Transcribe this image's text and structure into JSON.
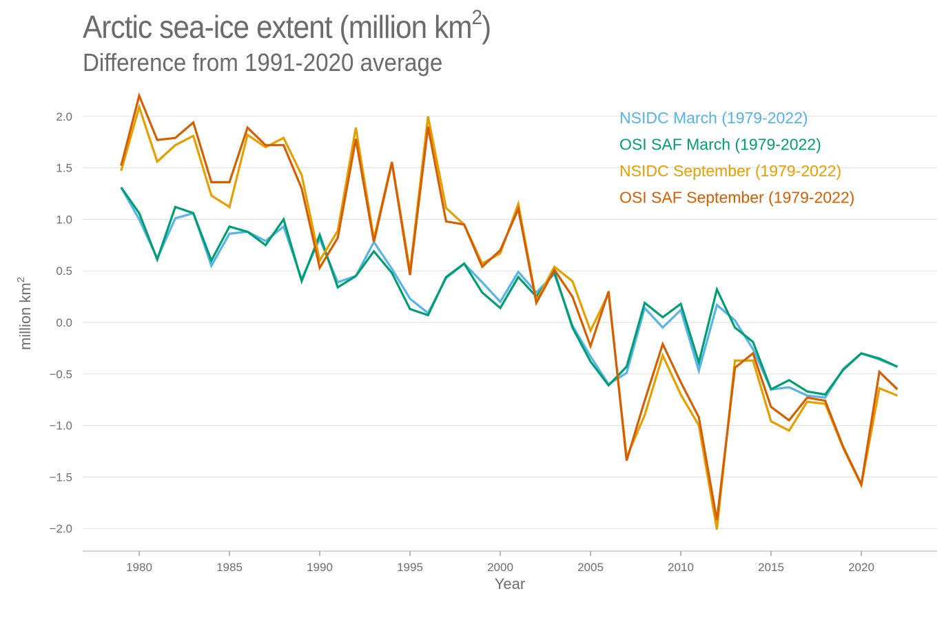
{
  "title": "Arctic sea-ice extent (million km",
  "title_sup": "2",
  "title_close": ")",
  "subtitle": "Difference from 1991-2020 average",
  "chart_data": {
    "type": "line",
    "title": "Arctic sea-ice extent (million km2)",
    "subtitle": "Difference from 1991-2020 average",
    "xlabel": "Year",
    "ylabel": "million km2",
    "xlim": [
      1976.9,
      2024.2
    ],
    "ylim": [
      -2.2,
      2.2
    ],
    "xticks": [
      1980,
      1985,
      1990,
      1995,
      2000,
      2005,
      2010,
      2015,
      2020
    ],
    "yticks": [
      2.0,
      1.5,
      1.0,
      0.5,
      0.0,
      -0.5,
      -1.0,
      -1.5,
      -2.0
    ],
    "ytick_labels": [
      "2.0",
      "1.5",
      "1.0",
      "0.5",
      "0.0",
      "−0.5",
      "−1.0",
      "−1.5",
      "−2.0"
    ],
    "grid": true,
    "legend_position": "top-right",
    "x": [
      1979,
      1980,
      1981,
      1982,
      1983,
      1984,
      1985,
      1986,
      1987,
      1988,
      1989,
      1990,
      1991,
      1992,
      1993,
      1994,
      1995,
      1996,
      1997,
      1998,
      1999,
      2000,
      2001,
      2002,
      2003,
      2004,
      2005,
      2006,
      2007,
      2008,
      2009,
      2010,
      2011,
      2012,
      2013,
      2014,
      2015,
      2016,
      2017,
      2018,
      2019,
      2020,
      2021,
      2022
    ],
    "series": [
      {
        "name": "NSIDC March (1979-2022)",
        "color": "#56b4e9",
        "values": [
          1.31,
          1.0,
          0.62,
          1.01,
          1.06,
          0.55,
          0.86,
          0.88,
          0.79,
          0.93,
          0.42,
          0.81,
          0.39,
          0.45,
          0.78,
          0.52,
          0.23,
          0.09,
          0.43,
          0.57,
          0.39,
          0.2,
          0.49,
          0.29,
          0.47,
          -0.03,
          -0.33,
          -0.6,
          -0.49,
          0.14,
          -0.05,
          0.12,
          -0.47,
          0.17,
          0.02,
          -0.26,
          -0.65,
          -0.63,
          -0.71,
          -0.73,
          -0.45,
          -0.3,
          -0.36,
          -0.43
        ]
      },
      {
        "name": "OSI SAF March (1979-2022)",
        "color": "#009e73",
        "values": [
          1.31,
          1.06,
          0.61,
          1.12,
          1.06,
          0.6,
          0.93,
          0.88,
          0.75,
          1.0,
          0.4,
          0.85,
          0.34,
          0.45,
          0.69,
          0.48,
          0.13,
          0.07,
          0.44,
          0.57,
          0.29,
          0.14,
          0.44,
          0.25,
          0.49,
          -0.05,
          -0.38,
          -0.61,
          -0.43,
          0.19,
          0.05,
          0.18,
          -0.39,
          0.32,
          -0.05,
          -0.19,
          -0.65,
          -0.56,
          -0.67,
          -0.7,
          -0.46,
          -0.3,
          -0.35,
          -0.43
        ]
      },
      {
        "name": "NSIDC September (1979-2022)",
        "color": "#e69f00",
        "values": [
          1.47,
          2.09,
          1.56,
          1.72,
          1.81,
          1.23,
          1.12,
          1.82,
          1.7,
          1.79,
          1.43,
          0.6,
          0.89,
          1.89,
          0.81,
          1.56,
          0.5,
          2.0,
          1.11,
          0.95,
          0.57,
          0.67,
          1.15,
          0.21,
          0.54,
          0.4,
          -0.08,
          0.28,
          -1.31,
          -0.9,
          -0.32,
          -0.7,
          -1.0,
          -2.01,
          -0.37,
          -0.37,
          -0.96,
          -1.05,
          -0.77,
          -0.79,
          -1.22,
          -1.58,
          -0.64,
          -0.71
        ]
      },
      {
        "name": "OSI SAF September (1979-2022)",
        "color": "#d55e00",
        "values": [
          1.52,
          2.2,
          1.77,
          1.79,
          1.94,
          1.36,
          1.36,
          1.89,
          1.72,
          1.72,
          1.3,
          0.53,
          0.82,
          1.78,
          0.78,
          1.55,
          0.46,
          1.9,
          0.98,
          0.95,
          0.54,
          0.7,
          1.1,
          0.19,
          0.51,
          0.25,
          -0.23,
          0.3,
          -1.34,
          -0.76,
          -0.21,
          -0.58,
          -0.92,
          -1.92,
          -0.44,
          -0.3,
          -0.82,
          -0.95,
          -0.73,
          -0.76,
          -1.21,
          -1.57,
          -0.48,
          -0.65
        ]
      }
    ]
  }
}
